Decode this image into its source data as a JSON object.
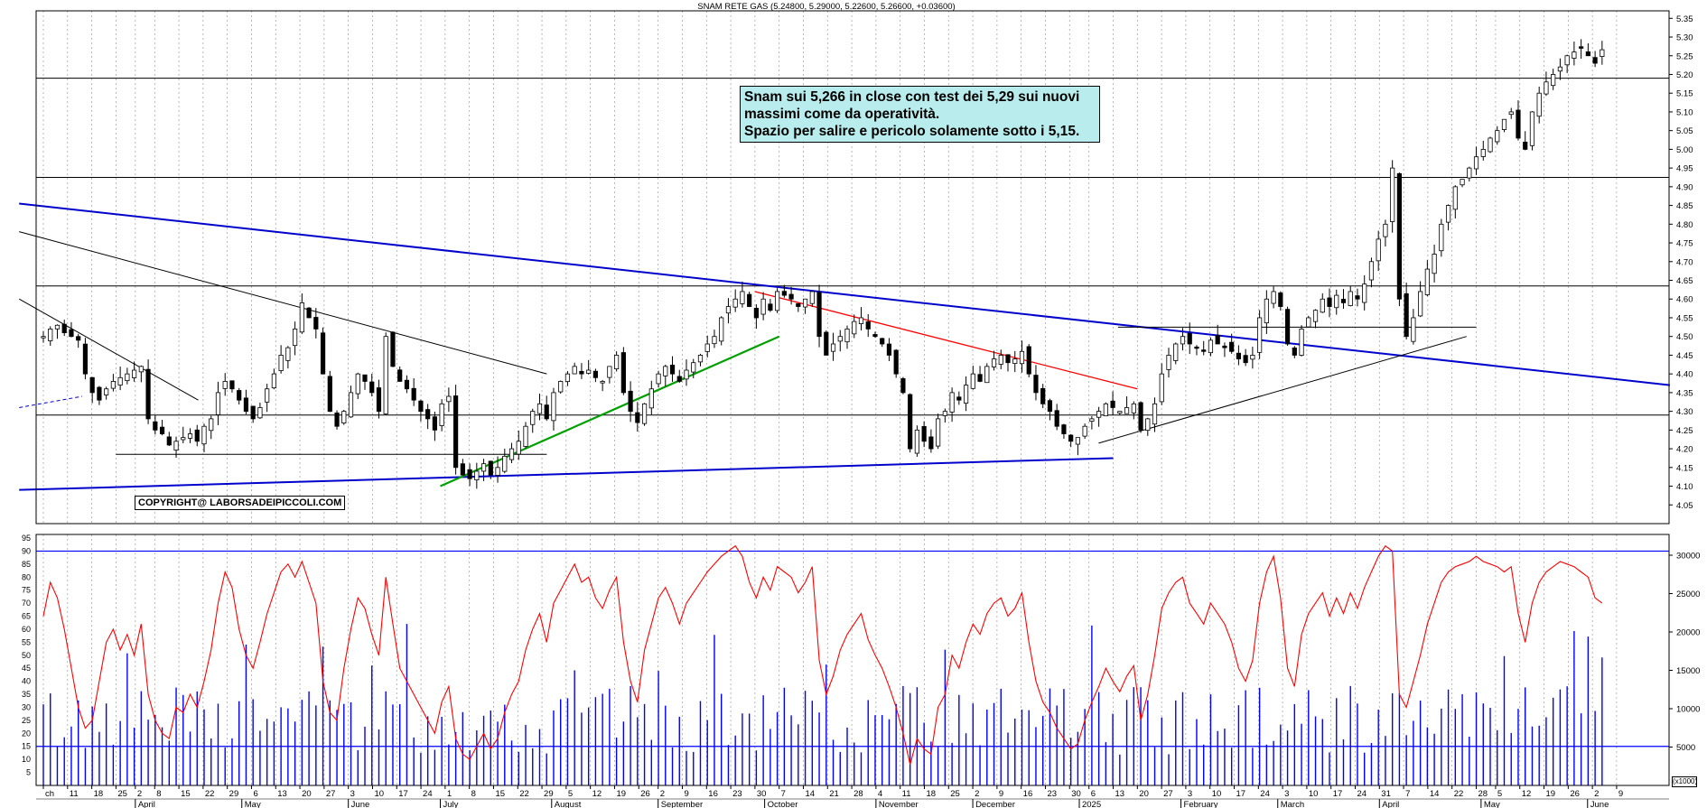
{
  "header": {
    "title": "SNAM RETE GAS (5.24800, 5.29000, 5.22600, 5.26600, +0.03600)"
  },
  "annotation": {
    "lines": [
      "Snam sui 5,266 in close con test dei 5,29 sui nuovi",
      "massimi come da operatività.",
      "Spazio per salire e pericolo solamente sotto i 5,15."
    ]
  },
  "copyright": "COPYRIGHT@ LABORSADEIPICCOLI.COM",
  "volume_scale_label": "(x1000)",
  "colors": {
    "candle": "#000000",
    "resistance_blue": "#0000cc",
    "support_green": "#00a000",
    "red_trend": "#ff0000",
    "rsi": "#ff0000",
    "volume": "#0000ff",
    "rsi_level": "#0000ff",
    "note_bg": "#b9ecec"
  },
  "chart_data": [
    {
      "type": "candlestick",
      "title": "SNAM RETE GAS (5.24800, 5.29000, 5.22600, 5.26600, +0.03600)",
      "ylim": [
        4.0,
        5.37
      ],
      "y_ticks": [
        4.05,
        4.1,
        4.15,
        4.2,
        4.25,
        4.3,
        4.35,
        4.4,
        4.45,
        4.5,
        4.55,
        4.6,
        4.65,
        4.7,
        4.75,
        4.8,
        4.85,
        4.9,
        4.95,
        5.0,
        5.05,
        5.1,
        5.15,
        5.2,
        5.25,
        5.3,
        5.35
      ],
      "y_tick_labels": [
        "4.05",
        "4.10",
        "4.15",
        "4.20",
        "4.25",
        "4.30",
        "4.35",
        "4.40",
        "4.45",
        "4.50",
        "4.55",
        "4.60",
        "4.65",
        "4.70",
        "4.75",
        "4.80",
        "4.85",
        "4.90",
        "4.95",
        "5.00",
        "5.05",
        "5.10",
        "5.15",
        "5.20",
        "5.25",
        "5.30",
        "5.35"
      ],
      "grid": true,
      "last_bar": {
        "open": 5.248,
        "high": 5.29,
        "low": 5.226,
        "close": 5.266,
        "change": 0.036
      },
      "closes": [
        4.5,
        4.52,
        4.53,
        4.51,
        4.5,
        4.49,
        4.4,
        4.35,
        4.33,
        4.36,
        4.38,
        4.39,
        4.4,
        4.41,
        4.42,
        4.28,
        4.25,
        4.24,
        4.21,
        4.22,
        4.23,
        4.24,
        4.22,
        4.26,
        4.28,
        4.35,
        4.38,
        4.36,
        4.33,
        4.3,
        4.28,
        4.31,
        4.36,
        4.4,
        4.45,
        4.47,
        4.52,
        4.59,
        4.55,
        4.52,
        4.4,
        4.3,
        4.26,
        4.3,
        4.35,
        4.4,
        4.38,
        4.35,
        4.3,
        4.5,
        4.42,
        4.38,
        4.36,
        4.33,
        4.3,
        4.28,
        4.25,
        4.32,
        4.34,
        4.15,
        4.13,
        4.12,
        4.14,
        4.16,
        4.13,
        4.15,
        4.18,
        4.2,
        4.22,
        4.26,
        4.3,
        4.32,
        4.28,
        4.35,
        4.38,
        4.4,
        4.42,
        4.4,
        4.41,
        4.39,
        4.38,
        4.42,
        4.45,
        4.35,
        4.3,
        4.27,
        4.32,
        4.36,
        4.4,
        4.42,
        4.4,
        4.38,
        4.41,
        4.43,
        4.45,
        4.48,
        4.5,
        4.55,
        4.58,
        4.6,
        4.62,
        4.58,
        4.55,
        4.6,
        4.57,
        4.62,
        4.61,
        4.6,
        4.58,
        4.6,
        4.62,
        4.5,
        4.45,
        4.48,
        4.5,
        4.52,
        4.54,
        4.55,
        4.52,
        4.5,
        4.48,
        4.45,
        4.4,
        4.35,
        4.2,
        4.25,
        4.22,
        4.2,
        4.28,
        4.3,
        4.35,
        4.33,
        4.37,
        4.4,
        4.38,
        4.42,
        4.44,
        4.45,
        4.43,
        4.44,
        4.46,
        4.4,
        4.35,
        4.32,
        4.3,
        4.26,
        4.24,
        4.22,
        4.23,
        4.26,
        4.28,
        4.3,
        4.32,
        4.31,
        4.3,
        4.31,
        4.32,
        4.25,
        4.28,
        4.32,
        4.4,
        4.45,
        4.48,
        4.5,
        4.48,
        4.47,
        4.46,
        4.49,
        4.48,
        4.47,
        4.46,
        4.44,
        4.43,
        4.45,
        4.55,
        4.6,
        4.62,
        4.58,
        4.48,
        4.45,
        4.52,
        4.55,
        4.57,
        4.6,
        4.58,
        4.61,
        4.59,
        4.62,
        4.6,
        4.64,
        4.7,
        4.76,
        4.8,
        4.95,
        4.6,
        4.5,
        4.55,
        4.62,
        4.68,
        4.72,
        4.8,
        4.85,
        4.9,
        4.92,
        4.95,
        4.98,
        5.0,
        5.03,
        5.05,
        5.08,
        5.1,
        5.03,
        5.0,
        5.1,
        5.15,
        5.18,
        5.2,
        5.22,
        5.25,
        5.26,
        5.27,
        5.25,
        5.23,
        5.266
      ],
      "horizontal_levels": [
        5.19,
        4.925,
        4.635,
        4.29
      ],
      "rsi": {
        "ylim": [
          0,
          95
        ],
        "y_ticks": [
          5,
          10,
          15,
          20,
          25,
          30,
          35,
          40,
          45,
          50,
          55,
          60,
          65,
          70,
          75,
          80,
          85,
          90,
          95
        ],
        "levels": [
          90,
          15
        ],
        "values": [
          65,
          78,
          72,
          60,
          45,
          30,
          22,
          25,
          40,
          55,
          60,
          52,
          58,
          50,
          62,
          35,
          25,
          20,
          18,
          30,
          28,
          35,
          30,
          40,
          52,
          70,
          82,
          76,
          60,
          50,
          45,
          55,
          66,
          74,
          82,
          85,
          80,
          86,
          78,
          70,
          40,
          28,
          25,
          45,
          60,
          72,
          68,
          58,
          50,
          80,
          62,
          45,
          40,
          35,
          30,
          25,
          20,
          32,
          38,
          18,
          12,
          10,
          15,
          20,
          14,
          18,
          28,
          35,
          40,
          52,
          60,
          66,
          55,
          70,
          75,
          80,
          85,
          78,
          80,
          72,
          68,
          75,
          80,
          55,
          40,
          32,
          52,
          62,
          72,
          76,
          70,
          62,
          70,
          74,
          78,
          82,
          85,
          88,
          90,
          92,
          88,
          78,
          72,
          80,
          75,
          84,
          82,
          80,
          74,
          78,
          84,
          48,
          35,
          42,
          52,
          58,
          62,
          66,
          56,
          50,
          45,
          38,
          30,
          20,
          8,
          18,
          14,
          12,
          30,
          35,
          50,
          45,
          55,
          62,
          58,
          66,
          70,
          72,
          65,
          68,
          74,
          55,
          40,
          32,
          28,
          22,
          18,
          14,
          16,
          25,
          32,
          38,
          45,
          40,
          36,
          42,
          46,
          25,
          35,
          50,
          68,
          74,
          78,
          80,
          70,
          66,
          62,
          70,
          66,
          62,
          55,
          45,
          40,
          48,
          70,
          82,
          88,
          72,
          45,
          38,
          58,
          66,
          70,
          74,
          65,
          72,
          66,
          74,
          68,
          76,
          82,
          88,
          92,
          90,
          35,
          30,
          40,
          50,
          62,
          70,
          78,
          82,
          84,
          85,
          86,
          88,
          86,
          85,
          84,
          82,
          84,
          66,
          55,
          70,
          78,
          82,
          84,
          86,
          85,
          84,
          82,
          80,
          72,
          70
        ],
        "volume_ylim": [
          0,
          32000
        ],
        "volume_ticks": [
          5000,
          10000,
          15000,
          20000,
          25000,
          30000
        ],
        "volume_tick_labels": [
          "5000",
          "10000",
          "15000",
          "20000",
          "25000",
          "30000"
        ]
      }
    }
  ],
  "axis": {
    "date_labels": [
      {
        "t": "ch",
        "d": 0
      },
      {
        "t": "11",
        "d": 5
      },
      {
        "t": "18",
        "d": 10
      },
      {
        "t": "25",
        "d": 15
      },
      {
        "t": "2",
        "d": 19
      },
      {
        "t": "8",
        "d": 23
      },
      {
        "t": "15",
        "d": 28
      },
      {
        "t": "22",
        "d": 33
      },
      {
        "t": "29",
        "d": 38
      },
      {
        "t": "6",
        "d": 43
      },
      {
        "t": "13",
        "d": 48
      },
      {
        "t": "20",
        "d": 53
      },
      {
        "t": "27",
        "d": 58
      },
      {
        "t": "3",
        "d": 63
      },
      {
        "t": "10",
        "d": 68
      },
      {
        "t": "17",
        "d": 73
      },
      {
        "t": "24",
        "d": 78
      },
      {
        "t": "1",
        "d": 83
      },
      {
        "t": "8",
        "d": 88
      },
      {
        "t": "15",
        "d": 93
      },
      {
        "t": "22",
        "d": 98
      },
      {
        "t": "29",
        "d": 103
      },
      {
        "t": "5",
        "d": 108
      },
      {
        "t": "12",
        "d": 113
      },
      {
        "t": "19",
        "d": 118
      },
      {
        "t": "26",
        "d": 123
      },
      {
        "t": "2",
        "d": 127
      },
      {
        "t": "9",
        "d": 132
      },
      {
        "t": "16",
        "d": 137
      },
      {
        "t": "23",
        "d": 142
      },
      {
        "t": "30",
        "d": 147
      },
      {
        "t": "7",
        "d": 152
      },
      {
        "t": "14",
        "d": 157
      },
      {
        "t": "21",
        "d": 162
      },
      {
        "t": "28",
        "d": 167
      },
      {
        "t": "4",
        "d": 172
      },
      {
        "t": "11",
        "d": 177
      },
      {
        "t": "18",
        "d": 182
      },
      {
        "t": "25",
        "d": 187
      },
      {
        "t": "2",
        "d": 192
      },
      {
        "t": "9",
        "d": 197
      },
      {
        "t": "16",
        "d": 202
      },
      {
        "t": "23",
        "d": 207
      },
      {
        "t": "30",
        "d": 212
      },
      {
        "t": "6",
        "d": 216
      },
      {
        "t": "13",
        "d": 221
      },
      {
        "t": "20",
        "d": 226
      },
      {
        "t": "27",
        "d": 231
      },
      {
        "t": "3",
        "d": 236
      },
      {
        "t": "10",
        "d": 241
      },
      {
        "t": "17",
        "d": 246
      },
      {
        "t": "24",
        "d": 251
      },
      {
        "t": "3",
        "d": 256
      },
      {
        "t": "10",
        "d": 261
      },
      {
        "t": "17",
        "d": 266
      },
      {
        "t": "24",
        "d": 271
      },
      {
        "t": "31",
        "d": 276
      },
      {
        "t": "7",
        "d": 281
      },
      {
        "t": "14",
        "d": 286
      },
      {
        "t": "22",
        "d": 291
      },
      {
        "t": "28",
        "d": 296
      },
      {
        "t": "5",
        "d": 300
      },
      {
        "t": "12",
        "d": 305
      },
      {
        "t": "19",
        "d": 310
      },
      {
        "t": "26",
        "d": 315
      },
      {
        "t": "2",
        "d": 320
      },
      {
        "t": "9",
        "d": 325
      }
    ],
    "month_labels": [
      {
        "t": "April",
        "d": 19
      },
      {
        "t": "May",
        "d": 41
      },
      {
        "t": "June",
        "d": 63
      },
      {
        "t": "July",
        "d": 82
      },
      {
        "t": "August",
        "d": 105
      },
      {
        "t": "September",
        "d": 127
      },
      {
        "t": "October",
        "d": 149
      },
      {
        "t": "November",
        "d": 172
      },
      {
        "t": "December",
        "d": 192
      },
      {
        "t": "2025",
        "d": 214
      },
      {
        "t": "February",
        "d": 235
      },
      {
        "t": "March",
        "d": 255
      },
      {
        "t": "April",
        "d": 276
      },
      {
        "t": "May",
        "d": 297
      },
      {
        "t": "June",
        "d": 319
      }
    ]
  }
}
